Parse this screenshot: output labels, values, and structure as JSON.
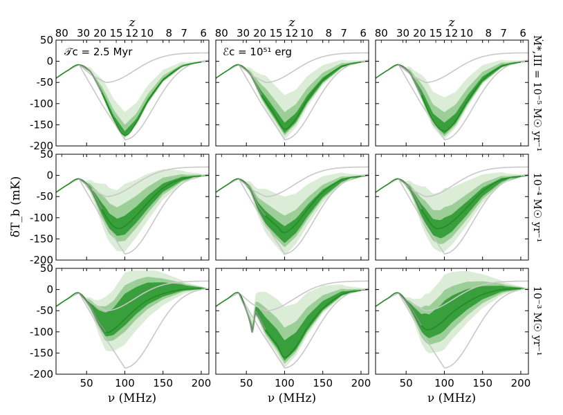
{
  "chart_data": {
    "type": "line",
    "layout": "3x3 grid",
    "x_label": "ν (MHz)",
    "top_axis_label": "z",
    "y_label": "δT_b (mK)",
    "x_range": [
      10,
      210
    ],
    "y_range": [
      -200,
      50
    ],
    "x_ticks": [
      50,
      100,
      150,
      200
    ],
    "y_ticks": [
      50,
      0,
      -50,
      -100,
      -150,
      -200
    ],
    "top_ticks": [
      {
        "label": "80",
        "nu": 17.5
      },
      {
        "label": "30",
        "nu": 45.8
      },
      {
        "label": "20",
        "nu": 67.6
      },
      {
        "label": "15",
        "nu": 88.8
      },
      {
        "label": "12",
        "nu": 109.3
      },
      {
        "label": "10",
        "nu": 129.1
      },
      {
        "label": "8",
        "nu": 157.8
      },
      {
        "label": "7",
        "nu": 177.5
      },
      {
        "label": "6",
        "nu": 202.9
      }
    ],
    "column_annotations": [
      "𝒯c = 2.5 Myr",
      "ℰc = 10⁵¹ erg",
      ""
    ],
    "row_labels": [
      "Ṁ*,III = 10⁻⁵ M☉ yr⁻¹",
      "10⁻⁴ M☉ yr⁻¹",
      "10⁻³ M☉ yr⁻¹"
    ],
    "colors": {
      "band_light": "#d7ebd3",
      "band_mid": "#91c88c",
      "band_dark": "#2f9a32",
      "median": "#228b22",
      "reference": "#c8c8c8",
      "pop2_segment": "#909090"
    },
    "reference_curves": [
      {
        "name": "early",
        "min_nu": 75,
        "min_value": -50,
        "end_value": 20
      },
      {
        "name": "late",
        "min_nu": 100,
        "min_value": -185,
        "end_value": 5
      }
    ],
    "panels": [
      {
        "row": 0,
        "col": 0,
        "median": [
          [
            10,
            -40
          ],
          [
            25,
            -22
          ],
          [
            40,
            -8
          ],
          [
            55,
            -25
          ],
          [
            70,
            -75
          ],
          [
            85,
            -135
          ],
          [
            100,
            -175
          ],
          [
            115,
            -145
          ],
          [
            130,
            -95
          ],
          [
            150,
            -45
          ],
          [
            175,
            -12
          ],
          [
            200,
            -2
          ]
        ],
        "bands": [
          [
            -120,
            -185
          ],
          [
            -150,
            -180
          ],
          [
            -165,
            -178
          ]
        ]
      },
      {
        "row": 0,
        "col": 1,
        "median": [
          [
            10,
            -40
          ],
          [
            25,
            -22
          ],
          [
            40,
            -8
          ],
          [
            55,
            -30
          ],
          [
            70,
            -80
          ],
          [
            85,
            -120
          ],
          [
            100,
            -160
          ],
          [
            115,
            -135
          ],
          [
            130,
            -90
          ],
          [
            150,
            -45
          ],
          [
            175,
            -12
          ],
          [
            200,
            -2
          ]
        ],
        "bands": [
          [
            -80,
            -185
          ],
          [
            -120,
            -175
          ],
          [
            -145,
            -170
          ]
        ]
      },
      {
        "row": 0,
        "col": 2,
        "median": [
          [
            10,
            -40
          ],
          [
            25,
            -22
          ],
          [
            40,
            -8
          ],
          [
            55,
            -28
          ],
          [
            70,
            -80
          ],
          [
            85,
            -140
          ],
          [
            100,
            -165
          ],
          [
            115,
            -140
          ],
          [
            130,
            -95
          ],
          [
            150,
            -45
          ],
          [
            175,
            -12
          ],
          [
            200,
            -2
          ]
        ],
        "bands": [
          [
            -85,
            -185
          ],
          [
            -120,
            -178
          ],
          [
            -145,
            -172
          ]
        ]
      },
      {
        "row": 1,
        "col": 0,
        "median": [
          [
            10,
            -40
          ],
          [
            25,
            -22
          ],
          [
            40,
            -8
          ],
          [
            55,
            -30
          ],
          [
            70,
            -80
          ],
          [
            80,
            -110
          ],
          [
            90,
            -125
          ],
          [
            100,
            -120
          ],
          [
            115,
            -95
          ],
          [
            130,
            -65
          ],
          [
            150,
            -30
          ],
          [
            175,
            -8
          ],
          [
            200,
            -1
          ]
        ],
        "bands": [
          [
            -25,
            -185
          ],
          [
            -70,
            -160
          ],
          [
            -100,
            -145
          ]
        ]
      },
      {
        "row": 1,
        "col": 1,
        "median": [
          [
            10,
            -40
          ],
          [
            25,
            -22
          ],
          [
            40,
            -8
          ],
          [
            55,
            -30
          ],
          [
            65,
            -70
          ],
          [
            75,
            -95
          ],
          [
            90,
            -120
          ],
          [
            100,
            -135
          ],
          [
            115,
            -115
          ],
          [
            130,
            -80
          ],
          [
            150,
            -40
          ],
          [
            175,
            -10
          ],
          [
            200,
            -2
          ]
        ],
        "bands": [
          [
            -50,
            -190
          ],
          [
            -95,
            -170
          ],
          [
            -120,
            -160
          ]
        ]
      },
      {
        "row": 1,
        "col": 2,
        "median": [
          [
            10,
            -40
          ],
          [
            25,
            -22
          ],
          [
            40,
            -8
          ],
          [
            55,
            -30
          ],
          [
            70,
            -80
          ],
          [
            85,
            -120
          ],
          [
            95,
            -125
          ],
          [
            110,
            -110
          ],
          [
            130,
            -75
          ],
          [
            150,
            -38
          ],
          [
            175,
            -10
          ],
          [
            200,
            -2
          ]
        ],
        "bands": [
          [
            -35,
            -185
          ],
          [
            -80,
            -165
          ],
          [
            -105,
            -150
          ]
        ]
      },
      {
        "row": 2,
        "col": 0,
        "median": [
          [
            10,
            -40
          ],
          [
            25,
            -22
          ],
          [
            40,
            -8
          ],
          [
            55,
            -40
          ],
          [
            65,
            -75
          ],
          [
            75,
            -100
          ],
          [
            85,
            -95
          ],
          [
            100,
            -70
          ],
          [
            115,
            -45
          ],
          [
            130,
            -25
          ],
          [
            150,
            -10
          ],
          [
            175,
            0
          ],
          [
            200,
            2
          ]
        ],
        "bands": [
          [
            10,
            -160
          ],
          [
            -20,
            -130
          ],
          [
            -40,
            -115
          ]
        ]
      },
      {
        "row": 2,
        "col": 1,
        "median": [
          [
            10,
            -40
          ],
          [
            25,
            -22
          ],
          [
            40,
            -8
          ],
          [
            50,
            -50
          ],
          [
            55,
            -80
          ],
          [
            58,
            -100
          ],
          [
            62,
            -55
          ],
          [
            65,
            -60
          ],
          [
            75,
            -95
          ],
          [
            90,
            -130
          ],
          [
            100,
            -160
          ],
          [
            115,
            -135
          ],
          [
            130,
            -90
          ],
          [
            150,
            -45
          ],
          [
            175,
            -12
          ],
          [
            200,
            -2
          ]
        ],
        "bands": [
          [
            -40,
            -185
          ],
          [
            -90,
            -175
          ],
          [
            -120,
            -168
          ]
        ]
      },
      {
        "row": 2,
        "col": 2,
        "median": [
          [
            10,
            -40
          ],
          [
            25,
            -22
          ],
          [
            40,
            -8
          ],
          [
            55,
            -40
          ],
          [
            70,
            -85
          ],
          [
            80,
            -95
          ],
          [
            95,
            -80
          ],
          [
            110,
            -55
          ],
          [
            130,
            -30
          ],
          [
            150,
            -12
          ],
          [
            175,
            0
          ],
          [
            200,
            2
          ]
        ],
        "bands": [
          [
            12,
            -165
          ],
          [
            -25,
            -140
          ],
          [
            -50,
            -120
          ]
        ]
      }
    ]
  }
}
